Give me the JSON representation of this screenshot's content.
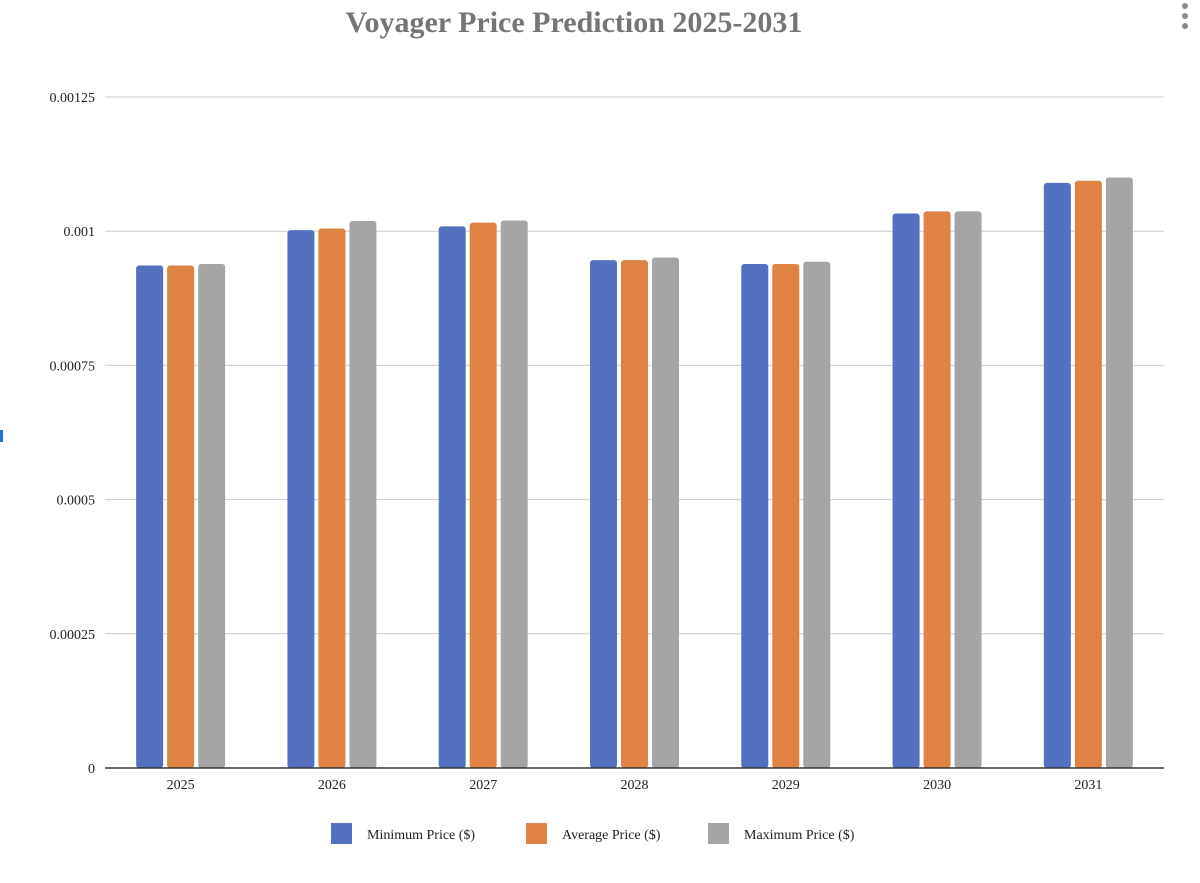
{
  "chart_data": {
    "type": "bar",
    "title": "Voyager Price Prediction 2025-2031",
    "xlabel": "",
    "ylabel": "",
    "categories": [
      "2025",
      "2026",
      "2027",
      "2028",
      "2029",
      "2030",
      "2031"
    ],
    "ylim": [
      0,
      0.00125
    ],
    "yticks": [
      0,
      0.00025,
      0.0005,
      0.00075,
      0.001,
      0.00125
    ],
    "ytick_labels": [
      "0",
      "0.00025",
      "0.0005",
      "0.00075",
      "0.001",
      "0.00125"
    ],
    "grid": true,
    "legend_position": "bottom",
    "series": [
      {
        "name": "Minimum Price ($)",
        "color": "#5470C1",
        "values": [
          0.000936,
          0.001002,
          0.001009,
          0.000946,
          0.000939,
          0.001033,
          0.00109
        ]
      },
      {
        "name": "Average Price ($)",
        "color": "#DE8344",
        "values": [
          0.000936,
          0.001005,
          0.001016,
          0.000946,
          0.000939,
          0.001037,
          0.001094
        ]
      },
      {
        "name": "Maximum Price ($)",
        "color": "#A5A5A5",
        "values": [
          0.000939,
          0.001019,
          0.00102,
          0.000951,
          0.000943,
          0.001037,
          0.0011
        ]
      }
    ]
  },
  "menu": {
    "icon": "more-vert-icon"
  }
}
